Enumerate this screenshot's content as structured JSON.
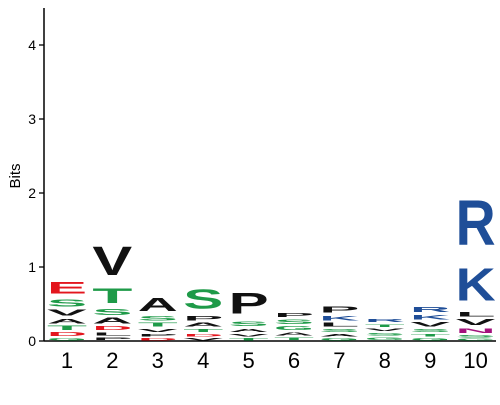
{
  "chart_data": {
    "type": "sequence_logo",
    "title": "",
    "ylabel": "Bits",
    "xlabel": "",
    "ylim": [
      0,
      4.5
    ],
    "yticks": [
      0,
      1,
      2,
      3,
      4
    ],
    "positions": [
      "1",
      "2",
      "3",
      "4",
      "5",
      "6",
      "7",
      "8",
      "9",
      "10"
    ],
    "colors": {
      "hydrophobic": "#111111",
      "acidic": "#e3161e",
      "basic": "#1f4e98",
      "polar": "#1e9a48",
      "amide": "#a3127c"
    },
    "residue_class": {
      "A": "hydrophobic",
      "V": "hydrophobic",
      "L": "hydrophobic",
      "I": "hydrophobic",
      "P": "hydrophobic",
      "M": "hydrophobic",
      "F": "hydrophobic",
      "W": "hydrophobic",
      "E": "acidic",
      "D": "acidic",
      "R": "basic",
      "K": "basic",
      "H": "basic",
      "S": "polar",
      "T": "polar",
      "G": "polar",
      "Y": "polar",
      "C": "polar",
      "Q": "amide",
      "N": "amide"
    },
    "columns": [
      [
        {
          "aa": "G",
          "bits": 0.05
        },
        {
          "aa": "D",
          "bits": 0.08
        },
        {
          "aa": "T",
          "bits": 0.09
        },
        {
          "aa": "A",
          "bits": 0.1
        },
        {
          "aa": "V",
          "bits": 0.12
        },
        {
          "aa": "S",
          "bits": 0.15
        },
        {
          "aa": "E",
          "bits": 0.25
        }
      ],
      [
        {
          "aa": "P",
          "bits": 0.06
        },
        {
          "aa": "L",
          "bits": 0.07
        },
        {
          "aa": "D",
          "bits": 0.08
        },
        {
          "aa": "A",
          "bits": 0.12
        },
        {
          "aa": "S",
          "bits": 0.12
        },
        {
          "aa": "T",
          "bits": 0.32
        },
        {
          "aa": "V",
          "bits": 0.62
        }
      ],
      [
        {
          "aa": "D",
          "bits": 0.05
        },
        {
          "aa": "P",
          "bits": 0.06
        },
        {
          "aa": "V",
          "bits": 0.07
        },
        {
          "aa": "T",
          "bits": 0.08
        },
        {
          "aa": "S",
          "bits": 0.09
        },
        {
          "aa": "A",
          "bits": 0.28
        }
      ],
      [
        {
          "aa": "V",
          "bits": 0.05
        },
        {
          "aa": "D",
          "bits": 0.06
        },
        {
          "aa": "T",
          "bits": 0.07
        },
        {
          "aa": "A",
          "bits": 0.08
        },
        {
          "aa": "P",
          "bits": 0.1
        },
        {
          "aa": "S",
          "bits": 0.42
        }
      ],
      [
        {
          "aa": "T",
          "bits": 0.05
        },
        {
          "aa": "V",
          "bits": 0.06
        },
        {
          "aa": "A",
          "bits": 0.07
        },
        {
          "aa": "S",
          "bits": 0.1
        },
        {
          "aa": "P",
          "bits": 0.45
        }
      ],
      [
        {
          "aa": "T",
          "bits": 0.06
        },
        {
          "aa": "A",
          "bits": 0.07
        },
        {
          "aa": "G",
          "bits": 0.08
        },
        {
          "aa": "S",
          "bits": 0.1
        },
        {
          "aa": "P",
          "bits": 0.08
        }
      ],
      [
        {
          "aa": "G",
          "bits": 0.05
        },
        {
          "aa": "A",
          "bits": 0.06
        },
        {
          "aa": "S",
          "bits": 0.07
        },
        {
          "aa": "L",
          "bits": 0.08
        },
        {
          "aa": "K",
          "bits": 0.1
        },
        {
          "aa": "P",
          "bits": 0.12
        }
      ],
      [
        {
          "aa": "G",
          "bits": 0.06
        },
        {
          "aa": "S",
          "bits": 0.06
        },
        {
          "aa": "V",
          "bits": 0.06
        },
        {
          "aa": "T",
          "bits": 0.06
        },
        {
          "aa": "R",
          "bits": 0.07
        }
      ],
      [
        {
          "aa": "G",
          "bits": 0.05
        },
        {
          "aa": "T",
          "bits": 0.06
        },
        {
          "aa": "S",
          "bits": 0.07
        },
        {
          "aa": "V",
          "bits": 0.09
        },
        {
          "aa": "K",
          "bits": 0.1
        },
        {
          "aa": "R",
          "bits": 0.11
        }
      ],
      [
        {
          "aa": "G",
          "bits": 0.04
        },
        {
          "aa": "S",
          "bits": 0.05
        },
        {
          "aa": "N",
          "bits": 0.1
        },
        {
          "aa": "V",
          "bits": 0.12
        },
        {
          "aa": "L",
          "bits": 0.1
        },
        {
          "aa": "K",
          "bits": 0.7
        },
        {
          "aa": "R",
          "bits": 0.97
        }
      ]
    ]
  }
}
